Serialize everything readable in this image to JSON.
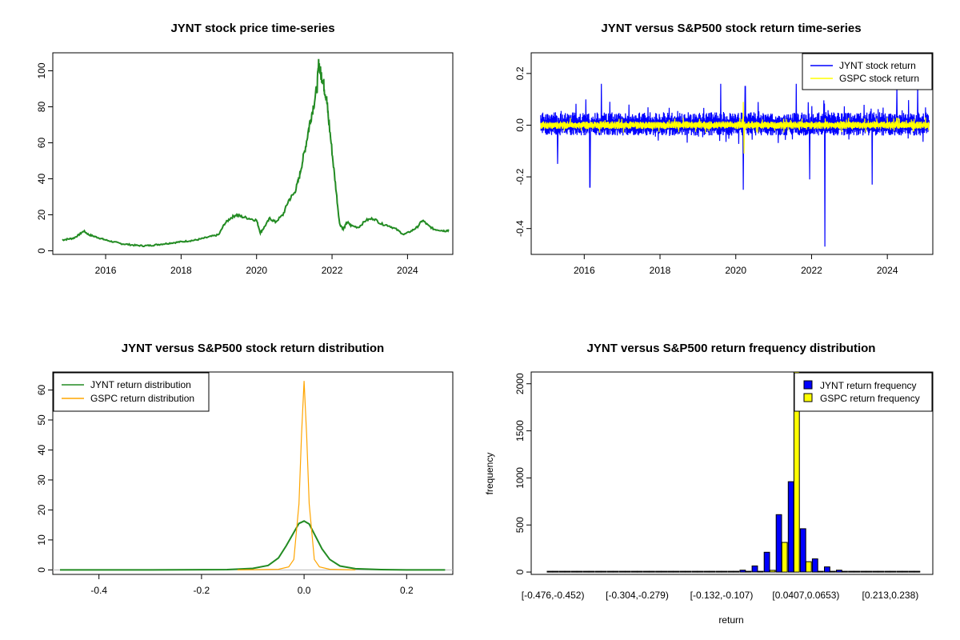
{
  "chart_data": [
    {
      "type": "line",
      "title": "JYNT stock price time-series",
      "xlim": [
        2014.6,
        2025.2
      ],
      "ylim": [
        -2,
        110
      ],
      "x_ticks": [
        "2016",
        "2018",
        "2020",
        "2022",
        "2024"
      ],
      "y_ticks": [
        "0",
        "20",
        "40",
        "60",
        "80",
        "100"
      ],
      "series": [
        {
          "color": "#228b22",
          "x": [
            2014.85,
            2015.0,
            2015.15,
            2015.3,
            2015.42,
            2015.55,
            2015.7,
            2015.85,
            2016.0,
            2016.2,
            2016.4,
            2016.6,
            2016.8,
            2017.0,
            2017.2,
            2017.4,
            2017.6,
            2017.8,
            2018.0,
            2018.2,
            2018.4,
            2018.6,
            2018.8,
            2019.0,
            2019.15,
            2019.3,
            2019.45,
            2019.6,
            2019.8,
            2020.0,
            2020.1,
            2020.2,
            2020.35,
            2020.5,
            2020.7,
            2020.85,
            2021.0,
            2021.1,
            2021.2,
            2021.3,
            2021.4,
            2021.5,
            2021.6,
            2021.65,
            2021.7,
            2021.75,
            2021.8,
            2021.85,
            2021.9,
            2022.0,
            2022.1,
            2022.2,
            2022.3,
            2022.4,
            2022.5,
            2022.7,
            2022.9,
            2023.1,
            2023.3,
            2023.5,
            2023.7,
            2023.9,
            2024.1,
            2024.25,
            2024.4,
            2024.55,
            2024.7,
            2024.85,
            2025.0,
            2025.1
          ],
          "y": [
            6,
            6.5,
            7,
            9,
            11,
            9,
            8,
            7,
            6,
            5,
            4,
            3.5,
            3,
            2.8,
            3,
            3.5,
            4,
            4.5,
            5,
            5.5,
            6,
            7,
            8,
            9,
            15,
            18,
            20,
            19,
            18,
            17,
            10,
            13,
            18,
            16,
            20,
            28,
            32,
            38,
            48,
            58,
            70,
            80,
            90,
            105,
            98,
            96,
            90,
            85,
            75,
            55,
            35,
            15,
            12,
            16,
            14,
            13,
            17,
            18,
            15,
            14,
            12,
            9,
            11,
            13,
            17,
            14,
            12,
            11.5,
            11,
            11.5
          ]
        }
      ]
    },
    {
      "type": "line",
      "title": "JYNT versus S&P500 stock return time-series",
      "xlim": [
        2014.6,
        2025.2
      ],
      "ylim": [
        -0.5,
        0.28
      ],
      "x_ticks": [
        "2016",
        "2018",
        "2020",
        "2022",
        "2024"
      ],
      "y_ticks": [
        "-0.4",
        "-0.2",
        "0.0",
        "0.2"
      ],
      "legend": "top-right",
      "series": [
        {
          "name": "JYNT stock return",
          "color": "#0000ff",
          "x_range": [
            2014.85,
            2025.1
          ],
          "typical_band": [
            -0.04,
            0.05
          ],
          "spikes": [
            [
              2015.3,
              -0.15
            ],
            [
              2016.15,
              -0.24
            ],
            [
              2016.45,
              0.16
            ],
            [
              2019.6,
              0.16
            ],
            [
              2020.2,
              -0.25
            ],
            [
              2020.25,
              0.15
            ],
            [
              2021.6,
              0.16
            ],
            [
              2021.95,
              -0.21
            ],
            [
              2022.35,
              -0.47
            ],
            [
              2023.6,
              -0.23
            ],
            [
              2024.25,
              0.15
            ],
            [
              2024.8,
              0.16
            ]
          ]
        },
        {
          "name": "GSPC stock return",
          "color": "#ffff00",
          "x_range": [
            2014.85,
            2025.1
          ],
          "typical_band": [
            -0.015,
            0.015
          ],
          "spikes": [
            [
              2020.2,
              0.09
            ],
            [
              2020.22,
              -0.11
            ]
          ]
        }
      ]
    },
    {
      "type": "line",
      "title": "JYNT versus S&P500 stock return distribution",
      "xlim": [
        -0.49,
        0.29
      ],
      "ylim": [
        -1.5,
        66
      ],
      "x_ticks": [
        "-0.4",
        "-0.2",
        "0.0",
        "0.2"
      ],
      "y_ticks": [
        "0",
        "10",
        "20",
        "30",
        "40",
        "50",
        "60"
      ],
      "legend": "top-left",
      "series": [
        {
          "name": "JYNT return distribution",
          "color": "#228b22",
          "x": [
            -0.476,
            -0.3,
            -0.15,
            -0.1,
            -0.07,
            -0.05,
            -0.035,
            -0.02,
            -0.01,
            0.0,
            0.01,
            0.02,
            0.035,
            0.05,
            0.07,
            0.1,
            0.15,
            0.2,
            0.275
          ],
          "y": [
            0,
            0,
            0.1,
            0.5,
            1.5,
            4,
            8,
            12.5,
            15.5,
            16.3,
            15.3,
            12,
            7,
            3.5,
            1.3,
            0.4,
            0.1,
            0,
            0
          ]
        },
        {
          "name": "GSPC return distribution",
          "color": "#ffa500",
          "x": [
            -0.13,
            -0.05,
            -0.03,
            -0.02,
            -0.01,
            -0.005,
            0.0,
            0.005,
            0.01,
            0.02,
            0.03,
            0.05,
            0.1
          ],
          "y": [
            0,
            0.2,
            1,
            3.5,
            22,
            45,
            63,
            45,
            22,
            3.5,
            1,
            0.2,
            0
          ]
        }
      ]
    },
    {
      "type": "bar",
      "title": "JYNT versus S&P500 return frequency distribution",
      "xlabel": "return",
      "ylabel": "frequency",
      "ylim": [
        -25,
        2125
      ],
      "y_ticks": [
        "0",
        "500",
        "1000",
        "1500",
        "2000"
      ],
      "x_tick_labels": [
        "[-0.476,-0.452)",
        "[-0.304,-0.279)",
        "[-0.132,-0.107)",
        "[0.0407,0.0653)",
        "[0.213,0.238)"
      ],
      "x_tick_bins": [
        0,
        7,
        14,
        21,
        28
      ],
      "legend": "top-right",
      "series": [
        {
          "name": "JYNT return frequency",
          "color": "#0000ff",
          "values": [
            1,
            0,
            0,
            0,
            0,
            0,
            0,
            1,
            0,
            0,
            0,
            0,
            0,
            1,
            3,
            8,
            20,
            65,
            210,
            610,
            960,
            460,
            140,
            55,
            20,
            8,
            3,
            1,
            1,
            0,
            1
          ]
        },
        {
          "name": "GSPC return frequency",
          "color": "#ffff00",
          "values": [
            0,
            0,
            0,
            0,
            0,
            0,
            0,
            0,
            0,
            0,
            0,
            0,
            0,
            0,
            0,
            0,
            2,
            5,
            18,
            315,
            2160,
            110,
            8,
            2,
            1,
            0,
            0,
            0,
            0,
            0,
            0
          ]
        }
      ]
    }
  ]
}
